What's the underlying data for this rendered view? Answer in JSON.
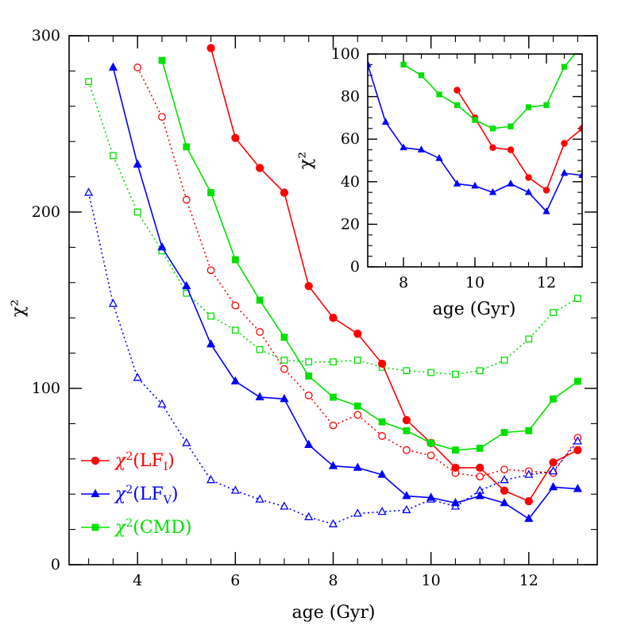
{
  "chart_data": [
    {
      "type": "line",
      "xlabel": "age (Gyr)",
      "ylabel": "χ²",
      "xlim": [
        2.6,
        13.4
      ],
      "ylim": [
        0,
        300
      ],
      "xticks": [
        4,
        6,
        8,
        10,
        12
      ],
      "yticks": [
        0,
        100,
        200,
        300
      ],
      "legend_position": "bottom-left",
      "series": [
        {
          "name": "χ²(LF_I)",
          "legend_main": "χ",
          "legend_sup": "2",
          "legend_open": "(LF",
          "legend_sub": "I",
          "legend_close": ")",
          "color": "#ff0000",
          "marker": "circle",
          "filled": true,
          "linestyle": "solid",
          "x": [
            5.5,
            6.0,
            6.5,
            7.0,
            7.5,
            8.0,
            8.5,
            9.0,
            9.5,
            10.0,
            10.5,
            11.0,
            11.5,
            12.0,
            12.5,
            13.0
          ],
          "y": [
            293,
            242,
            225,
            211,
            158,
            140,
            131,
            114,
            82,
            69,
            55,
            55,
            42,
            36,
            58,
            65
          ]
        },
        {
          "name": "χ²(LF_V)",
          "legend_main": "χ",
          "legend_sup": "2",
          "legend_open": "(LF",
          "legend_sub": "V",
          "legend_close": ")",
          "color": "#0000ff",
          "marker": "triangle",
          "filled": true,
          "linestyle": "solid",
          "x": [
            3.5,
            4.0,
            4.5,
            5.0,
            5.5,
            6.0,
            6.5,
            7.0,
            7.5,
            8.0,
            8.5,
            9.0,
            9.5,
            10.0,
            10.5,
            11.0,
            11.5,
            12.0,
            12.5,
            13.0
          ],
          "y": [
            282,
            227,
            180,
            158,
            125,
            104,
            95,
            94,
            68,
            56,
            55,
            51,
            39,
            38,
            35,
            39,
            35,
            26,
            44,
            43
          ]
        },
        {
          "name": "χ²(CMD)",
          "legend_main": "χ",
          "legend_sup": "2",
          "legend_open": "(CMD)",
          "legend_sub": "",
          "legend_close": "",
          "color": "#00e000",
          "marker": "square",
          "filled": true,
          "linestyle": "solid",
          "x": [
            4.5,
            5.0,
            5.5,
            6.0,
            6.5,
            7.0,
            7.5,
            8.0,
            8.5,
            9.0,
            9.5,
            10.0,
            10.5,
            11.0,
            11.5,
            12.0,
            12.5,
            13.0
          ],
          "y": [
            286,
            237,
            211,
            173,
            150,
            129,
            107,
            95,
            90,
            81,
            76,
            69,
            65,
            66,
            75,
            76,
            94,
            104
          ]
        },
        {
          "color": "#ff0000",
          "marker": "circle",
          "filled": false,
          "linestyle": "dotted",
          "x": [
            4.0,
            4.5,
            5.0,
            5.5,
            6.0,
            6.5,
            7.0,
            7.5,
            8.0,
            8.5,
            9.0,
            9.5,
            10.0,
            10.5,
            11.0,
            11.5,
            12.0,
            12.5,
            13.0
          ],
          "y": [
            282,
            254,
            207,
            167,
            147,
            132,
            111,
            96,
            79,
            85,
            73,
            65,
            62,
            52,
            50,
            54,
            53,
            52,
            72
          ]
        },
        {
          "color": "#0000ff",
          "marker": "triangle",
          "filled": false,
          "linestyle": "dotted",
          "x": [
            3.0,
            3.5,
            4.0,
            4.5,
            5.0,
            5.5,
            6.0,
            6.5,
            7.0,
            7.5,
            8.0,
            8.5,
            9.0,
            9.5,
            10.0,
            10.5,
            11.0,
            11.5,
            12.0,
            12.5,
            13.0
          ],
          "y": [
            211,
            148,
            106,
            91,
            69,
            48,
            42,
            37,
            33,
            27,
            23,
            29,
            30,
            31,
            37,
            33,
            42,
            48,
            51,
            53,
            70
          ]
        },
        {
          "color": "#00e000",
          "marker": "square",
          "filled": false,
          "linestyle": "dotted",
          "x": [
            3.0,
            3.5,
            4.0,
            4.5,
            5.0,
            5.5,
            6.0,
            6.5,
            7.0,
            7.5,
            8.0,
            8.5,
            9.0,
            9.5,
            10.0,
            10.5,
            11.0,
            11.5,
            12.0,
            12.5,
            13.0
          ],
          "y": [
            274,
            232,
            200,
            178,
            154,
            141,
            133,
            122,
            116,
            115,
            115,
            116,
            112,
            110,
            109,
            108,
            110,
            116,
            128,
            143,
            151
          ]
        }
      ]
    },
    {
      "type": "line",
      "xlabel": "age (Gyr)",
      "ylabel": "χ²",
      "xlim": [
        7,
        13
      ],
      "ylim": [
        0,
        100
      ],
      "xticks": [
        8,
        10,
        12
      ],
      "yticks": [
        0,
        20,
        40,
        60,
        80,
        100
      ],
      "series": [
        {
          "color": "#ff0000",
          "marker": "circle",
          "filled": true,
          "linestyle": "solid",
          "x": [
            9.5,
            10.0,
            10.5,
            11.0,
            11.5,
            12.0,
            12.5,
            13.0
          ],
          "y": [
            83,
            70,
            56,
            55,
            42,
            36,
            58,
            65
          ]
        },
        {
          "color": "#0000ff",
          "marker": "triangle",
          "filled": true,
          "linestyle": "solid",
          "x": [
            7.0,
            7.5,
            8.0,
            8.5,
            9.0,
            9.5,
            10.0,
            10.5,
            11.0,
            11.5,
            12.0,
            12.5,
            13.0
          ],
          "y": [
            95,
            68,
            56,
            55,
            51,
            39,
            38,
            35,
            39,
            35,
            26,
            44,
            43
          ]
        },
        {
          "color": "#00e000",
          "marker": "square",
          "filled": true,
          "linestyle": "solid",
          "x": [
            8.0,
            8.5,
            9.0,
            9.5,
            10.0,
            10.5,
            11.0,
            11.5,
            12.0,
            12.5,
            13.0
          ],
          "y": [
            95,
            90,
            81,
            76,
            69,
            65,
            66,
            75,
            76,
            94,
            104
          ]
        }
      ]
    }
  ]
}
